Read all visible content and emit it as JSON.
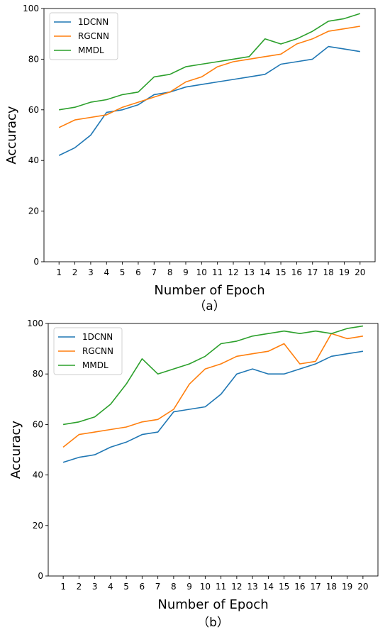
{
  "colors": {
    "1DCNN": "#1f77b4",
    "RGCNN": "#ff7f0e",
    "MMDL": "#2ca02c"
  },
  "chart_data": [
    {
      "type": "line",
      "caption": "（a）",
      "xlabel": "Number of Epoch",
      "ylabel": "Accuracy",
      "x": [
        1,
        2,
        3,
        4,
        5,
        6,
        7,
        8,
        9,
        10,
        11,
        12,
        13,
        14,
        15,
        16,
        17,
        18,
        19,
        20
      ],
      "ylim": [
        0,
        100
      ],
      "yticks": [
        0,
        20,
        40,
        60,
        80,
        100
      ],
      "legend": "top-left",
      "grid": false,
      "series": [
        {
          "name": "1DCNN",
          "values": [
            42,
            45,
            50,
            59,
            60,
            62,
            66,
            67,
            69,
            70,
            71,
            72,
            73,
            74,
            78,
            79,
            80,
            85,
            84,
            83
          ]
        },
        {
          "name": "RGCNN",
          "values": [
            53,
            56,
            57,
            58,
            61,
            63,
            65,
            67,
            71,
            73,
            77,
            79,
            80,
            81,
            82,
            86,
            88,
            91,
            92,
            93
          ]
        },
        {
          "name": "MMDL",
          "values": [
            60,
            61,
            63,
            64,
            66,
            67,
            73,
            74,
            77,
            78,
            79,
            80,
            81,
            88,
            86,
            88,
            91,
            95,
            96,
            98
          ]
        }
      ]
    },
    {
      "type": "line",
      "caption": "（b）",
      "xlabel": "Number of Epoch",
      "ylabel": "Accuracy",
      "x": [
        1,
        2,
        3,
        4,
        5,
        6,
        7,
        8,
        9,
        10,
        11,
        12,
        13,
        14,
        15,
        16,
        17,
        18,
        19,
        20
      ],
      "ylim": [
        0,
        100
      ],
      "yticks": [
        0,
        20,
        40,
        60,
        80,
        100
      ],
      "legend": "top-left",
      "grid": false,
      "series": [
        {
          "name": "1DCNN",
          "values": [
            45,
            47,
            48,
            51,
            53,
            56,
            57,
            65,
            66,
            67,
            72,
            80,
            82,
            80,
            80,
            82,
            84,
            87,
            88,
            89
          ]
        },
        {
          "name": "RGCNN",
          "values": [
            51,
            56,
            57,
            58,
            59,
            61,
            62,
            66,
            76,
            82,
            84,
            87,
            88,
            89,
            92,
            84,
            85,
            96,
            94,
            95
          ]
        },
        {
          "name": "MMDL",
          "values": [
            60,
            61,
            63,
            68,
            76,
            86,
            80,
            82,
            84,
            87,
            92,
            93,
            95,
            96,
            97,
            96,
            97,
            96,
            98,
            99
          ]
        }
      ]
    }
  ]
}
